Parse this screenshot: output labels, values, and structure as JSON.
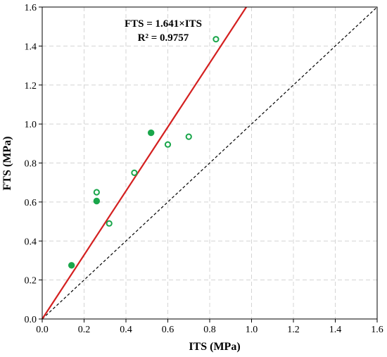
{
  "chart_data": {
    "type": "scatter",
    "title": "",
    "xlabel": "ITS (MPa)",
    "ylabel": "FTS (MPa)",
    "xlim": [
      0,
      1.6
    ],
    "ylim": [
      0,
      1.6
    ],
    "x_ticks": [
      0.0,
      0.2,
      0.4,
      0.6,
      0.8,
      1.0,
      1.2,
      1.4,
      1.6
    ],
    "y_ticks": [
      0.0,
      0.2,
      0.4,
      0.6,
      0.8,
      1.0,
      1.2,
      1.4,
      1.6
    ],
    "x_tick_labels": [
      "0.0",
      "0.2",
      "0.4",
      "0.6",
      "0.8",
      "1.0",
      "1.2",
      "1.4",
      "1.6"
    ],
    "y_tick_labels": [
      "0.0",
      "0.2",
      "0.4",
      "0.6",
      "0.8",
      "1.0",
      "1.2",
      "1.4",
      "1.6"
    ],
    "grid": true,
    "series": [
      {
        "marker": "filled-circle",
        "color": "#1aa64b",
        "points": [
          {
            "x": 0.14,
            "y": 0.275
          },
          {
            "x": 0.26,
            "y": 0.605
          },
          {
            "x": 0.52,
            "y": 0.955
          }
        ]
      },
      {
        "marker": "open-circle",
        "color": "#1aa64b",
        "points": [
          {
            "x": 0.26,
            "y": 0.65
          },
          {
            "x": 0.32,
            "y": 0.49
          },
          {
            "x": 0.44,
            "y": 0.75
          },
          {
            "x": 0.6,
            "y": 0.895
          },
          {
            "x": 0.7,
            "y": 0.935
          },
          {
            "x": 0.83,
            "y": 1.435
          }
        ]
      }
    ],
    "regression_line": {
      "slope": 1.641,
      "intercept": 0,
      "color": "#d42020"
    },
    "reference_line": {
      "slope": 1,
      "intercept": 0,
      "style": "dashed",
      "color": "#000000"
    },
    "annotation": {
      "equation": "FTS = 1.641×ITS",
      "r_squared": "R² = 0.9757"
    }
  }
}
